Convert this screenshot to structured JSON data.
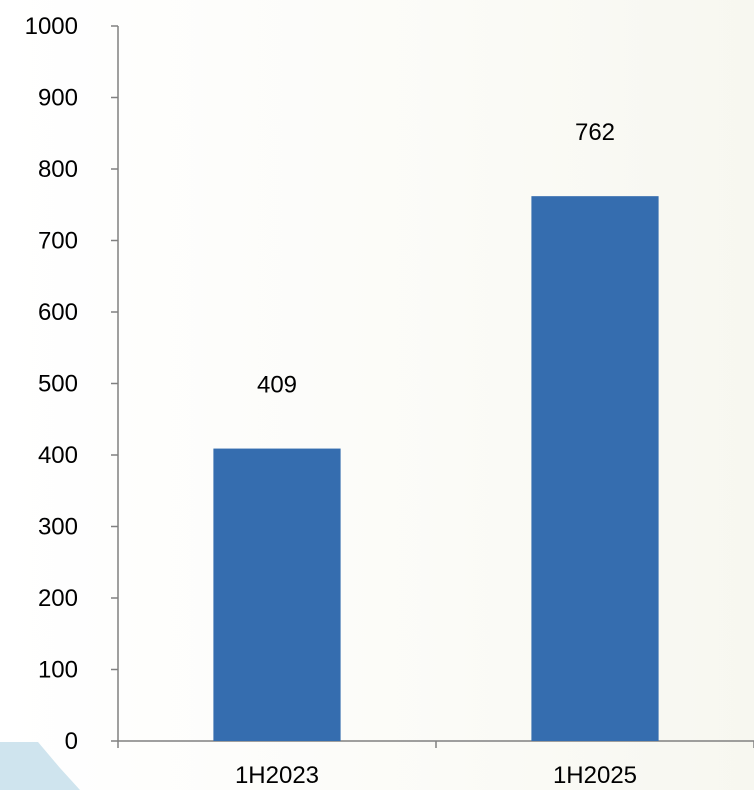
{
  "chart_data": {
    "type": "bar",
    "title": "",
    "xlabel": "",
    "ylabel": "",
    "categories": [
      "1H2023",
      "1H2025"
    ],
    "values": [
      409,
      762
    ],
    "data_labels": [
      "409",
      "762"
    ],
    "ylim": [
      0,
      1000
    ],
    "yticks": [
      0,
      100,
      200,
      300,
      400,
      500,
      600,
      700,
      800,
      900,
      1000
    ],
    "grid": false,
    "legend": "none",
    "bar_color": "#356daf"
  }
}
